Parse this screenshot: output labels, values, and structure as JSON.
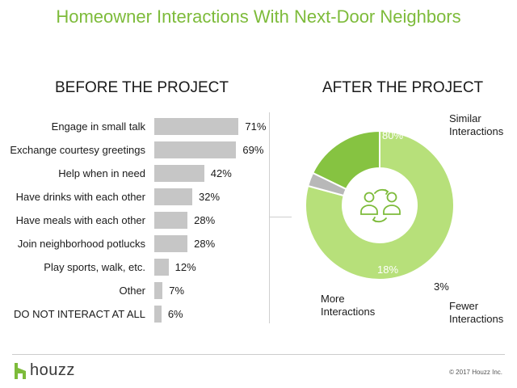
{
  "title": "Homeowner Interactions With Next-Door Neighbors",
  "footer": {
    "brand": "houzz",
    "copyright": "© 2017 Houzz Inc."
  },
  "colors": {
    "title": "#7dbb3a",
    "bar": "#c6c6c6",
    "similar": "#b7e07a",
    "more": "#86c341",
    "fewer": "#b8b8b8",
    "icon": "#7dbb3a"
  },
  "chart_data": [
    {
      "type": "bar",
      "orientation": "horizontal",
      "title": "BEFORE THE PROJECT",
      "categories": [
        "Engage in small talk",
        "Exchange courtesy greetings",
        "Help when in need",
        "Have drinks with each other",
        "Have meals with each other",
        "Join neighborhood potlucks",
        "Play sports, walk, etc.",
        "Other",
        "DO NOT INTERACT AT ALL"
      ],
      "values": [
        71,
        69,
        42,
        32,
        28,
        28,
        12,
        7,
        6
      ],
      "value_labels": [
        "71%",
        "69%",
        "42%",
        "32%",
        "28%",
        "28%",
        "12%",
        "7%",
        "6%"
      ],
      "xlim": [
        0,
        100
      ],
      "grid": false
    },
    {
      "type": "pie",
      "donut": true,
      "title": "AFTER THE PROJECT",
      "slices": [
        {
          "label": "Similar Interactions",
          "label_lines": [
            "Similar",
            "Interactions"
          ],
          "value": 80,
          "value_label": "80%",
          "color": "#b7e07a"
        },
        {
          "label": "Fewer Interactions",
          "label_lines": [
            "Fewer",
            "Interactions"
          ],
          "value": 3,
          "value_label": "3%",
          "color": "#b8b8b8"
        },
        {
          "label": "More Interactions",
          "label_lines": [
            "More",
            "Interactions"
          ],
          "value": 18,
          "value_label": "18%",
          "color": "#86c341"
        }
      ],
      "center_icon": "people-exchange-icon"
    }
  ]
}
